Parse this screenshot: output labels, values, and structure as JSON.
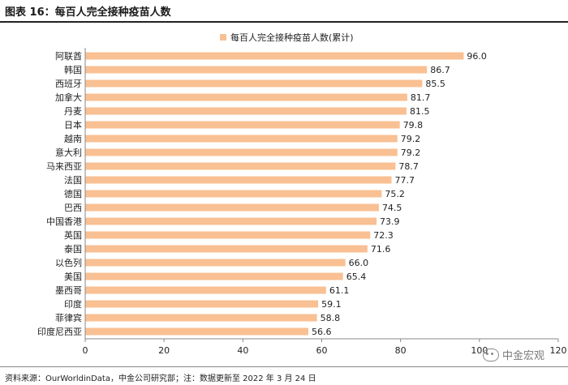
{
  "figure_title": "图表 16：每百人完全接种疫苗人数",
  "source_note": "资料来源：OurWorldinData，中金公司研究部；注：数据更新至 2022 年 3 月 24 日",
  "watermark": "中金宏观",
  "colors": {
    "bar": "#F9C093",
    "axis": "#888888",
    "text": "#222222"
  },
  "chart_data": {
    "type": "bar",
    "orientation": "horizontal",
    "legend": "每百人完全接种疫苗人数(累计)",
    "legend_position": "top-center",
    "categories": [
      "阿联酋",
      "韩国",
      "西班牙",
      "加拿大",
      "丹麦",
      "日本",
      "越南",
      "意大利",
      "马来西亚",
      "法国",
      "德国",
      "巴西",
      "中国香港",
      "英国",
      "泰国",
      "以色列",
      "美国",
      "墨西哥",
      "印度",
      "菲律宾",
      "印度尼西亚"
    ],
    "values": [
      96.0,
      86.7,
      85.5,
      81.7,
      81.5,
      79.8,
      79.2,
      79.2,
      78.7,
      77.7,
      75.2,
      74.5,
      73.9,
      72.3,
      71.6,
      66.0,
      65.4,
      61.1,
      59.1,
      58.8,
      56.6
    ],
    "value_labels": [
      "96.0",
      "86.7",
      "85.5",
      "81.7",
      "81.5",
      "79.8",
      "79.2",
      "79.2",
      "78.7",
      "77.7",
      "75.2",
      "74.5",
      "73.9",
      "72.3",
      "71.6",
      "66.0",
      "65.4",
      "61.1",
      "59.1",
      "58.8",
      "56.6"
    ],
    "xlim": [
      0,
      120
    ],
    "xticks": [
      0,
      20,
      40,
      60,
      80,
      100,
      120
    ],
    "grid": false
  }
}
